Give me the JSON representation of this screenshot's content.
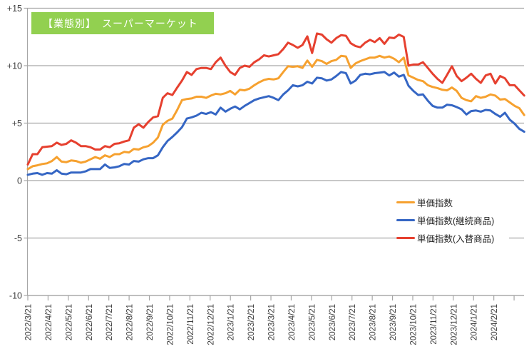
{
  "title": {
    "text": "【業態別】　スーパーマーケット"
  },
  "colors": {
    "title_bg": "#92D050",
    "title_text": "#FFFFFF",
    "gridline": "#A6A6A6",
    "axis": "#A6A6A6",
    "tick_text": "#404040",
    "orange": "#F6A12F",
    "blue": "#3566C4",
    "red": "#E6402F"
  },
  "legend": {
    "items": [
      {
        "key": "unit-price-index",
        "label": "単価指数",
        "color_key": "orange"
      },
      {
        "key": "unit-price-index-continuing",
        "label": "単価指数(継続商品)",
        "color_key": "blue"
      },
      {
        "key": "unit-price-index-replacement",
        "label": "単価指数(入替商品)",
        "color_key": "red"
      }
    ]
  },
  "chart_data": {
    "type": "line",
    "title": "【業態別】　スーパーマーケット",
    "grid": true,
    "legend_position": "middle-right",
    "y_axis": {
      "range": [
        -10,
        15
      ],
      "tick_values": [
        15,
        10,
        5,
        0,
        -5,
        -10
      ],
      "tick_labels": [
        "+15",
        "+10",
        "+5",
        "0",
        "-5",
        "-10"
      ]
    },
    "x_axis": {
      "note": "weekly data points; axis labeled monthly on the 21st",
      "tick_labels": [
        "2022/3/21",
        "2022/4/21",
        "2022/5/21",
        "2022/6/21",
        "2022/7/21",
        "2022/8/21",
        "2022/9/21",
        "2022/10/21",
        "2022/11/21",
        "2022/12/21",
        "2023/1/21",
        "2023/2/21",
        "2023/3/21",
        "2023/4/21",
        "2023/5/21",
        "2023/6/21",
        "2023/7/21",
        "2023/8/21",
        "2023/9/21",
        "2023/10/21",
        "2023/11/21",
        "2023/12/21",
        "2024/1/21",
        "2024/2/21"
      ]
    },
    "series": [
      {
        "name": "単価指数",
        "color_key": "orange",
        "values": [
          1.0,
          1.25,
          1.33,
          1.44,
          1.5,
          1.7,
          2.05,
          1.65,
          1.6,
          1.75,
          1.7,
          1.55,
          1.65,
          1.85,
          2.05,
          1.9,
          2.2,
          2.05,
          2.3,
          2.3,
          2.5,
          2.45,
          2.75,
          2.7,
          2.9,
          3.0,
          3.3,
          3.75,
          4.85,
          5.2,
          5.4,
          6.15,
          7.0,
          7.1,
          7.15,
          7.3,
          7.3,
          7.2,
          7.4,
          7.55,
          7.5,
          7.6,
          7.8,
          7.5,
          7.9,
          7.85,
          8.0,
          8.3,
          8.55,
          8.75,
          8.85,
          8.8,
          8.9,
          9.45,
          9.95,
          9.9,
          9.95,
          9.8,
          10.45,
          9.9,
          10.5,
          10.4,
          10.15,
          10.4,
          10.5,
          10.85,
          10.8,
          9.8,
          10.2,
          10.4,
          10.55,
          10.7,
          10.7,
          10.85,
          10.7,
          10.8,
          10.6,
          10.3,
          10.7,
          9.15,
          8.95,
          8.75,
          8.65,
          8.3,
          8.15,
          8.05,
          7.9,
          7.85,
          8.1,
          7.8,
          7.2,
          7.0,
          6.9,
          7.35,
          7.2,
          7.3,
          7.5,
          7.4,
          7.05,
          7.1,
          6.8,
          6.5,
          6.3,
          5.7
        ]
      },
      {
        "name": "単価指数(継続商品)",
        "color_key": "blue",
        "values": [
          0.5,
          0.6,
          0.65,
          0.5,
          0.65,
          0.6,
          0.9,
          0.6,
          0.55,
          0.7,
          0.7,
          0.7,
          0.8,
          1.0,
          1.0,
          1.0,
          1.4,
          1.1,
          1.15,
          1.25,
          1.45,
          1.4,
          1.7,
          1.65,
          1.85,
          1.95,
          1.95,
          2.2,
          2.9,
          3.45,
          3.8,
          4.2,
          4.65,
          5.4,
          5.5,
          5.65,
          5.9,
          5.8,
          5.95,
          5.75,
          6.35,
          6.0,
          6.25,
          6.45,
          6.2,
          6.5,
          6.75,
          7.0,
          7.15,
          7.25,
          7.35,
          7.2,
          7.0,
          7.5,
          7.85,
          8.3,
          8.2,
          8.3,
          8.6,
          8.45,
          8.95,
          8.9,
          8.7,
          8.8,
          9.1,
          9.45,
          9.35,
          8.45,
          8.7,
          9.2,
          9.3,
          9.25,
          9.35,
          9.4,
          9.45,
          9.15,
          9.4,
          9.05,
          9.2,
          8.25,
          7.8,
          7.45,
          7.5,
          6.95,
          6.5,
          6.35,
          6.35,
          6.6,
          6.55,
          6.4,
          6.2,
          5.75,
          6.05,
          6.1,
          6.0,
          6.15,
          6.1,
          5.8,
          5.55,
          5.9,
          5.3,
          4.95,
          4.5,
          4.25
        ]
      },
      {
        "name": "単価指数(入替商品)",
        "color_key": "red",
        "values": [
          1.4,
          2.3,
          2.3,
          2.9,
          2.95,
          3.0,
          3.3,
          3.1,
          3.2,
          3.5,
          3.3,
          3.0,
          3.0,
          2.9,
          2.7,
          2.7,
          3.0,
          2.9,
          3.2,
          3.25,
          3.4,
          3.5,
          4.6,
          4.9,
          4.6,
          5.1,
          5.5,
          5.6,
          7.2,
          7.6,
          7.45,
          8.1,
          8.7,
          9.45,
          9.2,
          9.7,
          9.8,
          9.8,
          9.7,
          10.3,
          10.7,
          10.0,
          9.45,
          9.2,
          9.8,
          10.0,
          9.9,
          10.3,
          10.55,
          10.9,
          10.8,
          10.9,
          11.0,
          11.45,
          12.0,
          11.8,
          11.55,
          11.8,
          12.55,
          11.1,
          12.8,
          12.7,
          12.3,
          12.0,
          12.4,
          12.65,
          12.6,
          11.95,
          11.7,
          11.6,
          12.0,
          12.25,
          12.05,
          12.4,
          11.9,
          12.45,
          12.4,
          12.7,
          12.5,
          10.0,
          10.1,
          10.1,
          10.3,
          9.8,
          9.3,
          8.85,
          8.5,
          9.2,
          9.95,
          9.1,
          8.65,
          8.95,
          9.3,
          8.85,
          8.5,
          9.15,
          9.3,
          8.45,
          9.1,
          8.9,
          8.3,
          8.3,
          7.85,
          7.4
        ]
      }
    ]
  }
}
